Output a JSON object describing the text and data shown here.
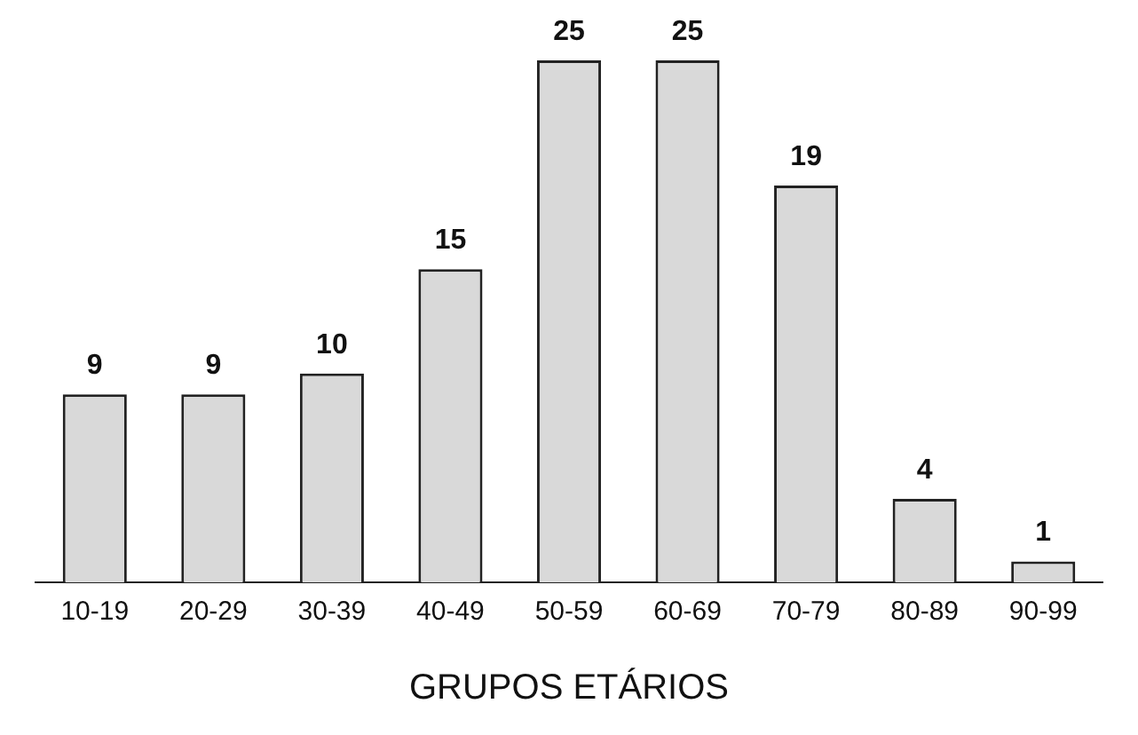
{
  "chart_data": {
    "type": "bar",
    "xlabel": "GRUPOS ETÁRIOS",
    "categories": [
      "10-19",
      "20-29",
      "30-39",
      "40-49",
      "50-59",
      "60-69",
      "70-79",
      "80-89",
      "90-99"
    ],
    "values": [
      9,
      9,
      10,
      15,
      25,
      25,
      19,
      4,
      1
    ],
    "color": "#d9d9d9",
    "data_labels": true,
    "grid": false,
    "legend": false
  }
}
